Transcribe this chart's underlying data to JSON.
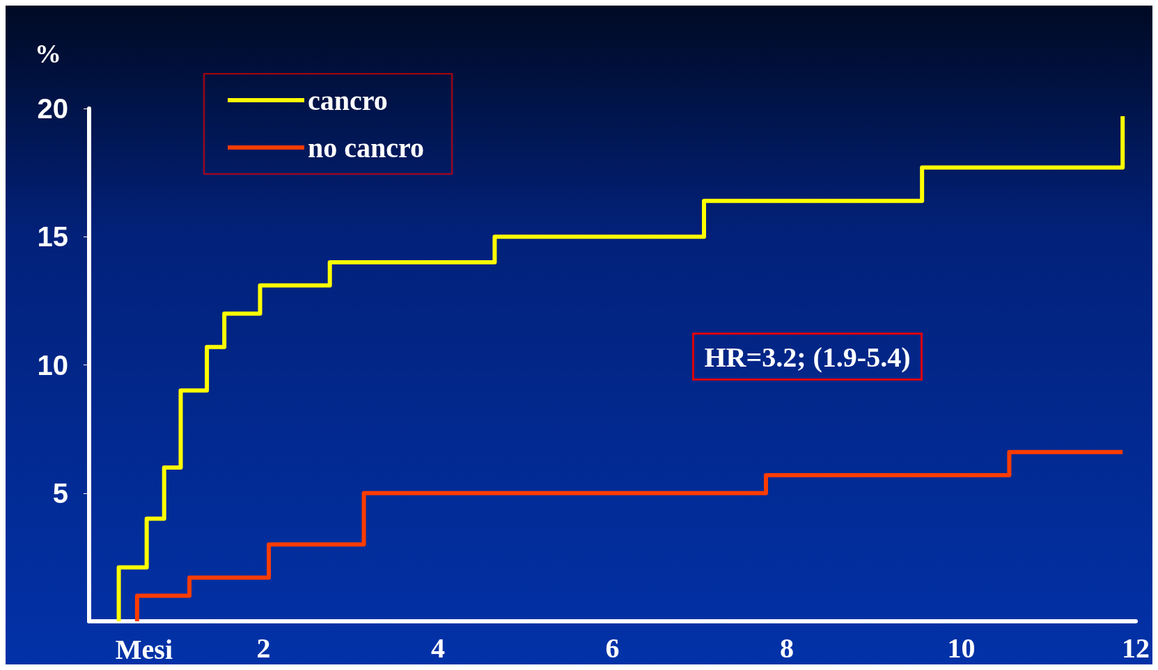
{
  "chart_data": {
    "type": "step",
    "ylabel": "%",
    "xlabel": "Mesi",
    "xlim": [
      0,
      12
    ],
    "xticks": [
      2,
      4,
      6,
      8,
      10,
      12
    ],
    "ylim": [
      0,
      20
    ],
    "yticks": [
      5,
      10,
      15,
      20
    ],
    "grid": false,
    "legend": "top left",
    "marker": "none",
    "line_style": "solid",
    "annotations": [
      "HR=3.2; (1.9-5.4)"
    ],
    "series": [
      {
        "name": "cancro",
        "color": "#ffff00",
        "x": [
          0.34,
          0.34,
          0.66,
          0.86,
          1.05,
          1.35,
          1.55,
          1.96,
          2.76,
          4.65,
          7.05,
          9.55,
          11.85
        ],
        "values": [
          0,
          2.1,
          4.0,
          6.0,
          9.0,
          10.7,
          12.0,
          13.1,
          14.0,
          15.0,
          16.4,
          17.7,
          19.7
        ]
      },
      {
        "name": "no cancro",
        "color": "#ff3c00",
        "x": [
          0.55,
          0.55,
          1.15,
          2.06,
          3.15,
          7.76,
          10.55,
          11.85
        ],
        "values": [
          0,
          1.0,
          1.7,
          3.0,
          5.0,
          5.7,
          6.6,
          6.6
        ]
      }
    ]
  }
}
